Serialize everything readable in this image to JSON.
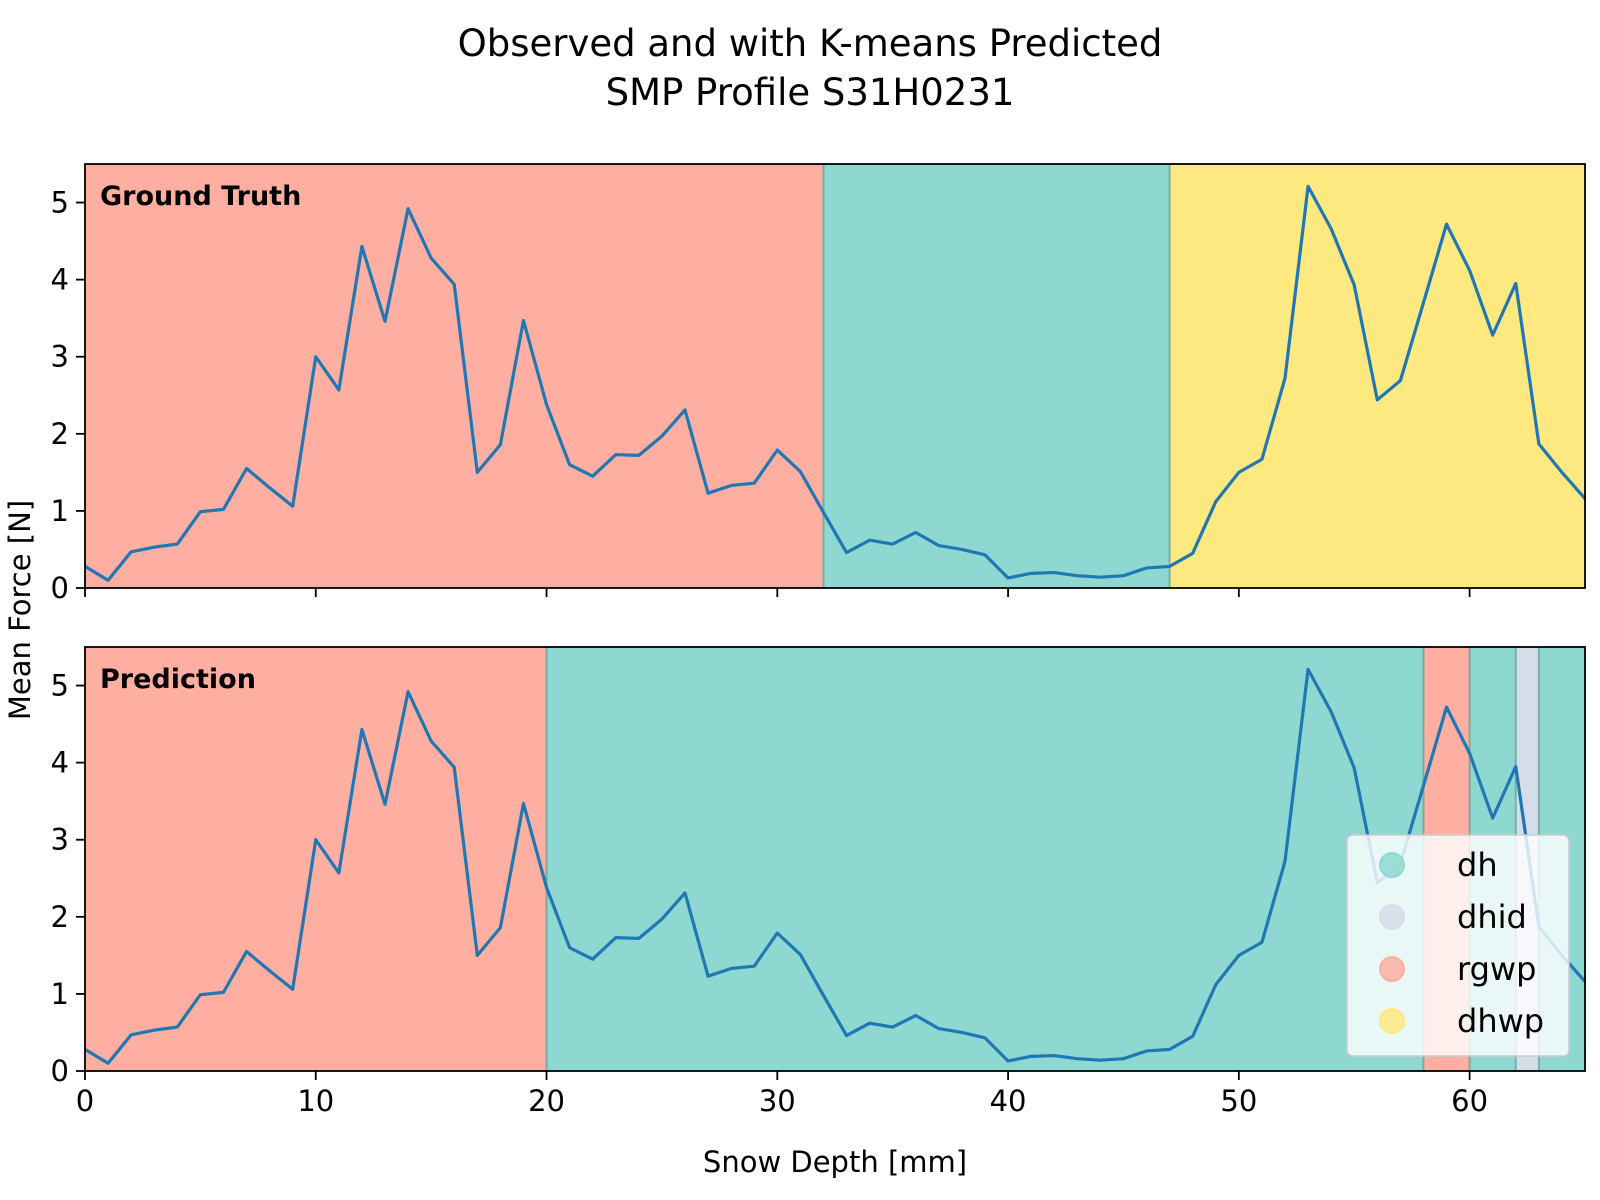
{
  "chart_data": {
    "type": "line",
    "title_lines": [
      "Observed and with K-means Predicted",
      "SMP Profile S31H0231"
    ],
    "xlabel": "Snow Depth [mm]",
    "ylabel": "Mean Force [N]",
    "xlim": [
      0,
      65
    ],
    "ylim": [
      0,
      5.5
    ],
    "xticks": [
      0,
      10,
      20,
      30,
      40,
      50,
      60
    ],
    "yticks": [
      0,
      1,
      2,
      3,
      4,
      5
    ],
    "line_color": "#1f77b4",
    "x": [
      0,
      1,
      2,
      3,
      4,
      5,
      6,
      7,
      8,
      9,
      10,
      11,
      12,
      13,
      14,
      15,
      16,
      17,
      18,
      19,
      20,
      21,
      22,
      23,
      24,
      25,
      26,
      27,
      28,
      29,
      30,
      31,
      32,
      33,
      34,
      35,
      36,
      37,
      38,
      39,
      40,
      41,
      42,
      43,
      44,
      45,
      46,
      47,
      48,
      49,
      50,
      51,
      52,
      53,
      54,
      55,
      56,
      57,
      58,
      59,
      60,
      61,
      62,
      63,
      64,
      65
    ],
    "y": [
      0.28,
      0.1,
      0.47,
      0.53,
      0.57,
      0.99,
      1.02,
      1.55,
      1.3,
      1.06,
      3.0,
      2.57,
      4.43,
      3.46,
      4.92,
      4.28,
      3.94,
      1.5,
      1.86,
      3.47,
      2.38,
      1.6,
      1.45,
      1.73,
      1.72,
      1.97,
      2.31,
      1.23,
      1.33,
      1.36,
      1.79,
      1.51,
      0.98,
      0.46,
      0.62,
      0.57,
      0.72,
      0.55,
      0.5,
      0.43,
      0.13,
      0.19,
      0.2,
      0.16,
      0.14,
      0.16,
      0.26,
      0.28,
      0.45,
      1.12,
      1.5,
      1.67,
      2.72,
      5.21,
      4.66,
      3.93,
      2.44,
      2.69,
      3.7,
      4.72,
      4.12,
      3.28,
      3.95,
      1.87,
      1.5,
      1.16
    ],
    "class_colors": {
      "dh": "#8fd8d2",
      "dhid": "#d5dde9",
      "rgwp": "#feafa1",
      "dhwp": "#fee980"
    },
    "panels": [
      {
        "label": "Ground Truth",
        "segments": [
          {
            "class": "rgwp",
            "start": 0,
            "end": 32
          },
          {
            "class": "dh",
            "start": 32,
            "end": 47
          },
          {
            "class": "dhwp",
            "start": 47,
            "end": 65
          }
        ]
      },
      {
        "label": "Prediction",
        "segments": [
          {
            "class": "rgwp",
            "start": 0,
            "end": 20
          },
          {
            "class": "dh",
            "start": 20,
            "end": 58
          },
          {
            "class": "rgwp",
            "start": 58,
            "end": 60
          },
          {
            "class": "dh",
            "start": 60,
            "end": 62
          },
          {
            "class": "dhid",
            "start": 62,
            "end": 63
          },
          {
            "class": "dh",
            "start": 63,
            "end": 65
          }
        ]
      }
    ],
    "legend": {
      "placement": "lower-right of bottom panel",
      "entries": [
        {
          "label": "dh",
          "class": "dh"
        },
        {
          "label": "dhid",
          "class": "dhid"
        },
        {
          "label": "rgwp",
          "class": "rgwp"
        },
        {
          "label": "dhwp",
          "class": "dhwp"
        }
      ]
    }
  }
}
